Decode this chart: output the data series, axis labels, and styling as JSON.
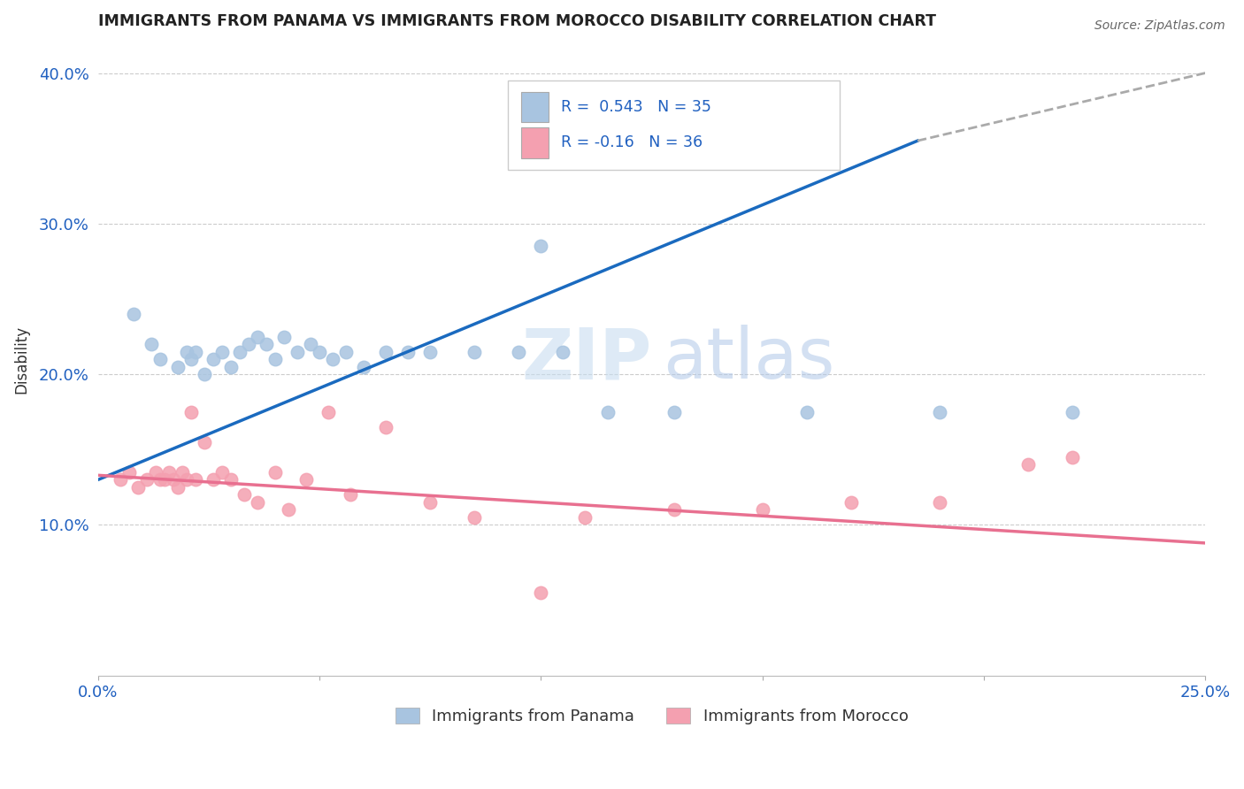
{
  "title": "IMMIGRANTS FROM PANAMA VS IMMIGRANTS FROM MOROCCO DISABILITY CORRELATION CHART",
  "source": "Source: ZipAtlas.com",
  "ylabel_label": "Disability",
  "xlim": [
    0.0,
    0.25
  ],
  "ylim": [
    0.0,
    0.42
  ],
  "xtick_vals": [
    0.0,
    0.05,
    0.1,
    0.15,
    0.2,
    0.25
  ],
  "xtick_labels": [
    "0.0%",
    "",
    "",
    "",
    "",
    "25.0%"
  ],
  "ytick_vals": [
    0.1,
    0.2,
    0.3,
    0.4
  ],
  "ytick_labels": [
    "10.0%",
    "20.0%",
    "30.0%",
    "40.0%"
  ],
  "r_panama": 0.543,
  "n_panama": 35,
  "r_morocco": -0.16,
  "n_morocco": 36,
  "panama_color": "#a8c4e0",
  "morocco_color": "#f4a0b0",
  "line_panama_color": "#1a6abf",
  "line_panama_dash_color": "#aaaaaa",
  "line_morocco_color": "#e87090",
  "watermark_zip": "ZIP",
  "watermark_atlas": "atlas",
  "panama_scatter_x": [
    0.008,
    0.012,
    0.014,
    0.018,
    0.02,
    0.021,
    0.022,
    0.024,
    0.026,
    0.028,
    0.03,
    0.032,
    0.034,
    0.036,
    0.038,
    0.04,
    0.042,
    0.045,
    0.048,
    0.05,
    0.053,
    0.056,
    0.06,
    0.065,
    0.07,
    0.075,
    0.085,
    0.095,
    0.105,
    0.115,
    0.13,
    0.16,
    0.19,
    0.22,
    0.1
  ],
  "panama_scatter_y": [
    0.24,
    0.22,
    0.21,
    0.205,
    0.215,
    0.21,
    0.215,
    0.2,
    0.21,
    0.215,
    0.205,
    0.215,
    0.22,
    0.225,
    0.22,
    0.21,
    0.225,
    0.215,
    0.22,
    0.215,
    0.21,
    0.215,
    0.205,
    0.215,
    0.215,
    0.215,
    0.215,
    0.215,
    0.215,
    0.175,
    0.175,
    0.175,
    0.175,
    0.175,
    0.285
  ],
  "morocco_scatter_x": [
    0.005,
    0.007,
    0.009,
    0.011,
    0.013,
    0.014,
    0.015,
    0.016,
    0.017,
    0.018,
    0.019,
    0.02,
    0.021,
    0.022,
    0.024,
    0.026,
    0.028,
    0.03,
    0.033,
    0.036,
    0.04,
    0.043,
    0.047,
    0.052,
    0.057,
    0.065,
    0.075,
    0.085,
    0.11,
    0.13,
    0.15,
    0.17,
    0.19,
    0.21,
    0.22,
    0.1
  ],
  "morocco_scatter_y": [
    0.13,
    0.135,
    0.125,
    0.13,
    0.135,
    0.13,
    0.13,
    0.135,
    0.13,
    0.125,
    0.135,
    0.13,
    0.175,
    0.13,
    0.155,
    0.13,
    0.135,
    0.13,
    0.12,
    0.115,
    0.135,
    0.11,
    0.13,
    0.175,
    0.12,
    0.165,
    0.115,
    0.105,
    0.105,
    0.11,
    0.11,
    0.115,
    0.115,
    0.14,
    0.145,
    0.055
  ],
  "line_panama_x0": 0.0,
  "line_panama_y0": 0.13,
  "line_panama_x1": 0.185,
  "line_panama_y1": 0.355,
  "line_panama_dash_x0": 0.185,
  "line_panama_dash_y0": 0.355,
  "line_panama_dash_x1": 0.25,
  "line_panama_dash_y1": 0.4,
  "line_morocco_x0": 0.0,
  "line_morocco_y0": 0.133,
  "line_morocco_x1": 0.25,
  "line_morocco_y1": 0.088
}
